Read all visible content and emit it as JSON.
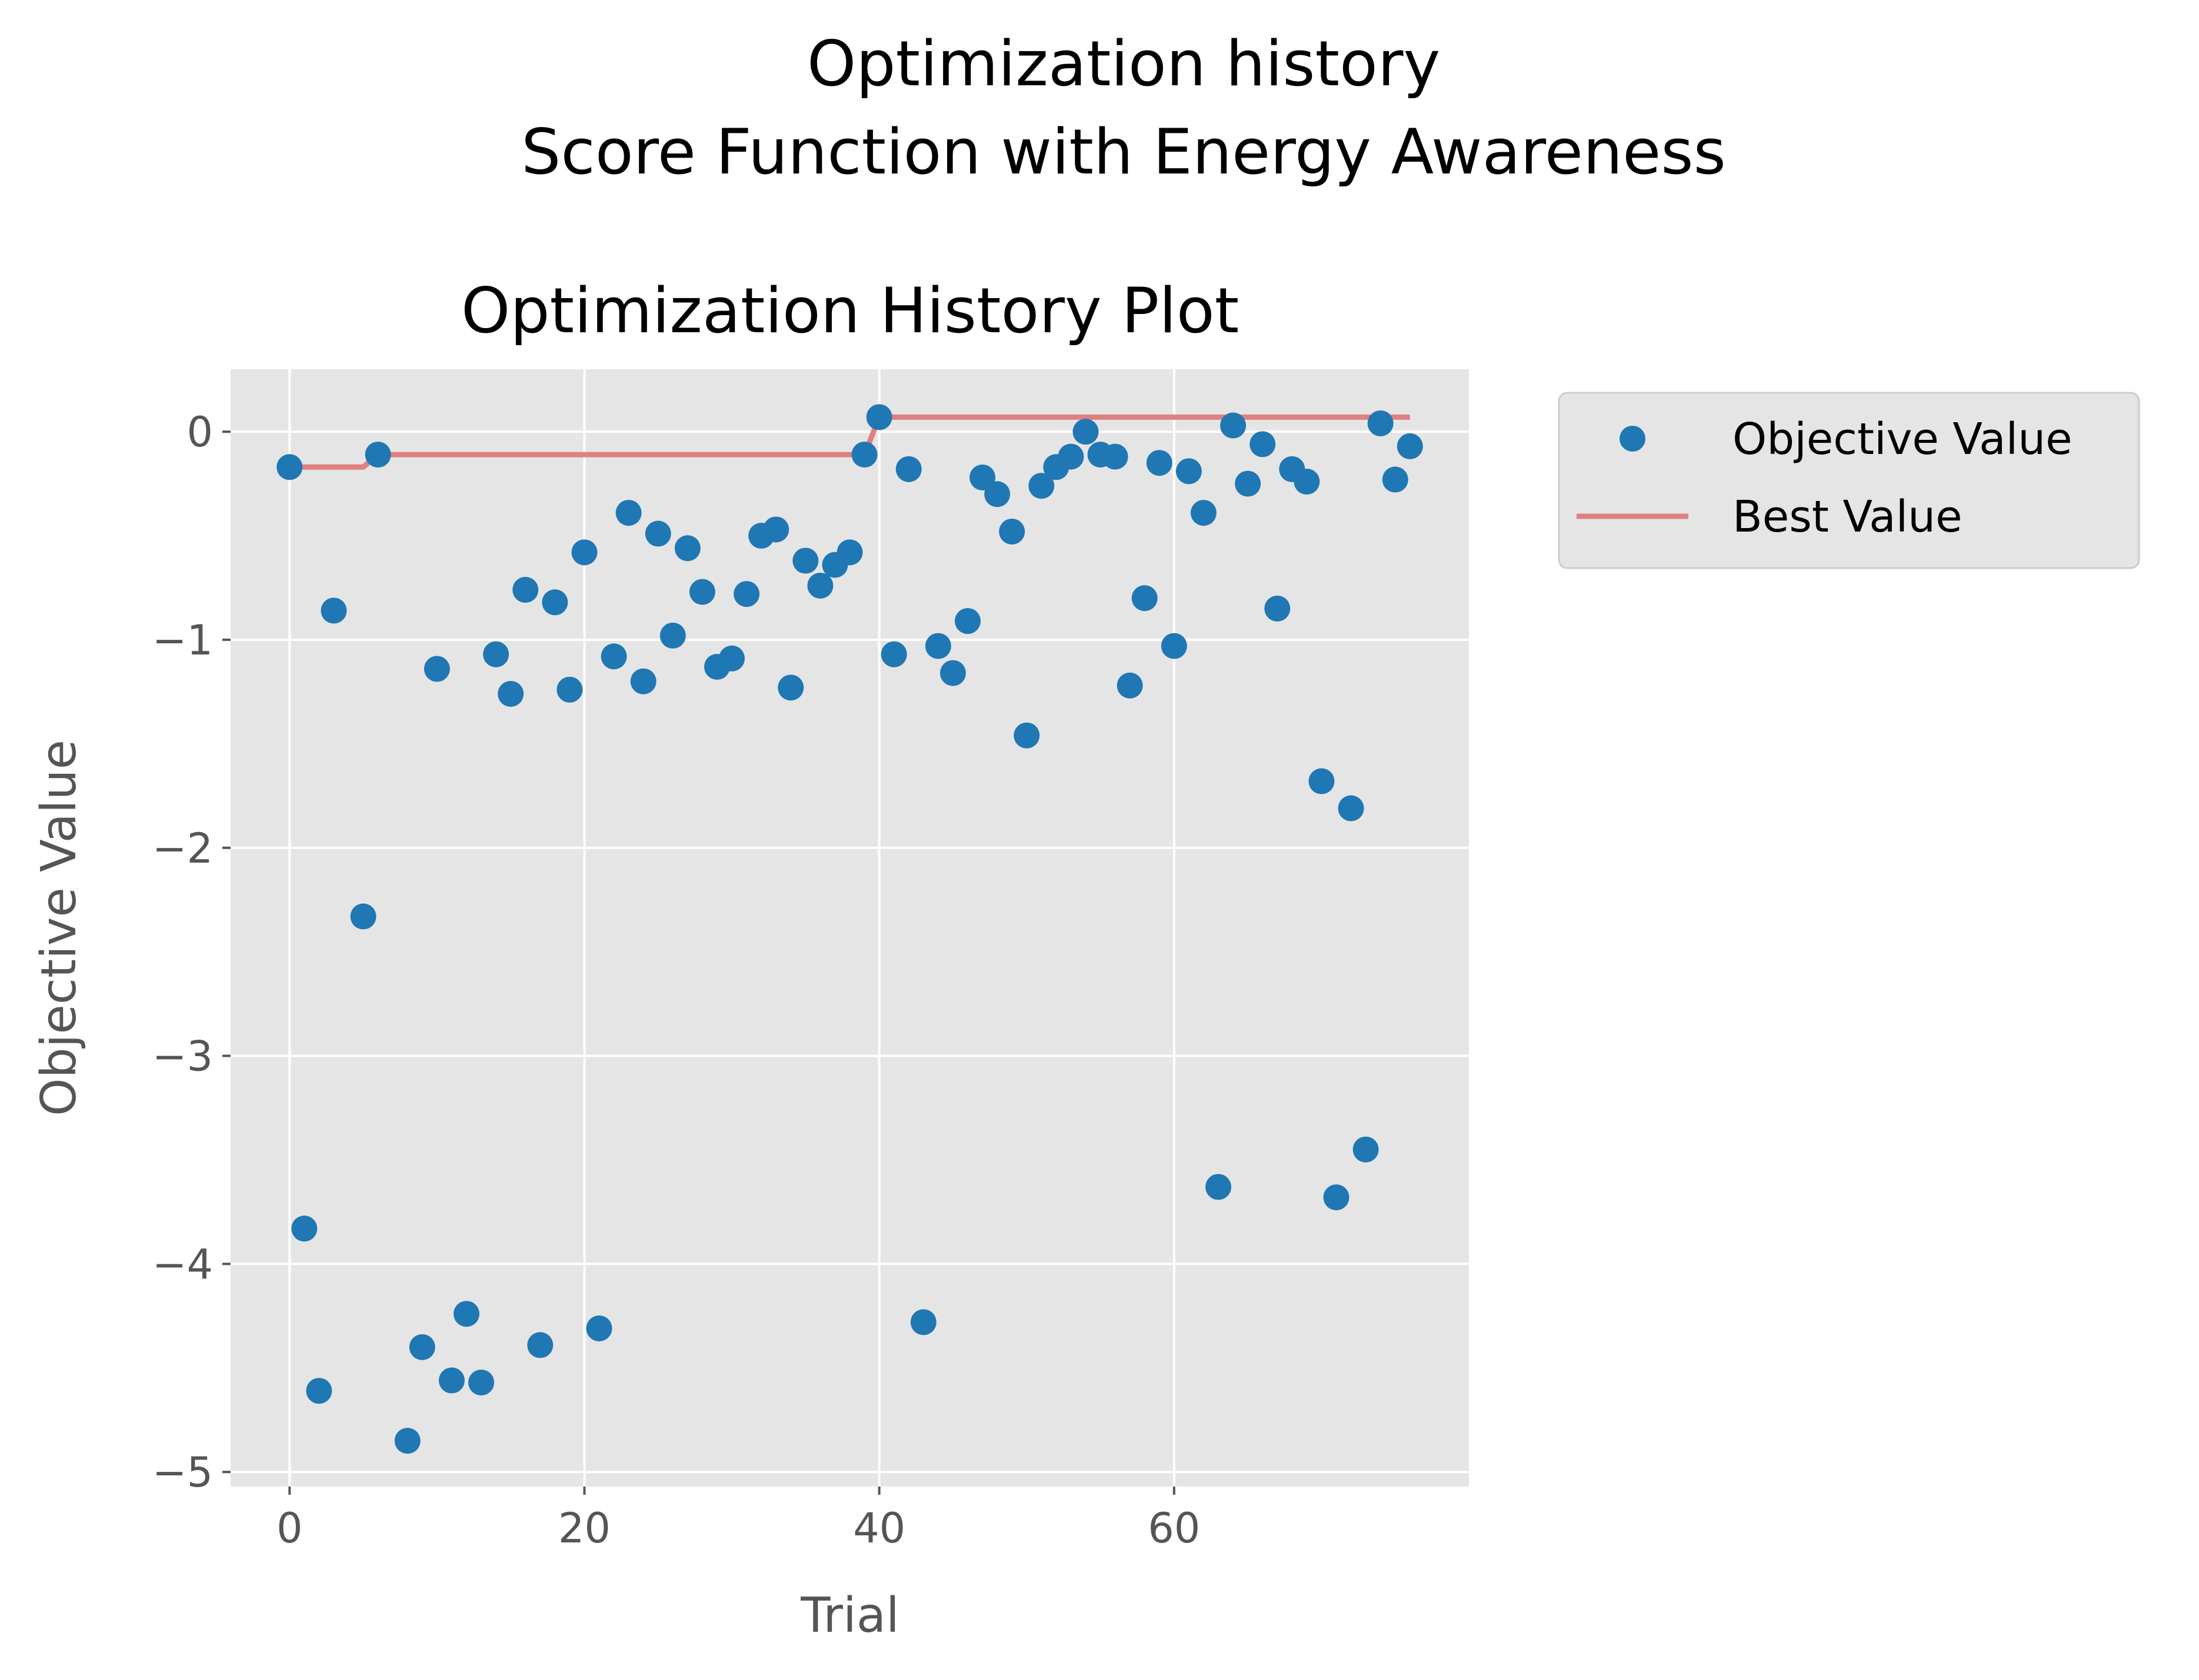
{
  "figure": {
    "suptitle_line1": "Optimization history",
    "suptitle_line2": "Score Function with Energy Awareness"
  },
  "colors": {
    "axes_background": "#e5e5e5",
    "grid": "#ffffff",
    "points": "#1f77b4",
    "best_line": "#e08080",
    "tick_text": "#555555"
  },
  "chart_data": {
    "type": "scatter",
    "title": "Optimization History Plot",
    "xlabel": "Trial",
    "ylabel": "Objective Value",
    "xlim": [
      -4,
      80
    ],
    "ylim": [
      -5.07,
      0.3
    ],
    "x_ticks": [
      0,
      20,
      40,
      60
    ],
    "x_tick_labels": [
      "0",
      "20",
      "40",
      "60"
    ],
    "y_ticks": [
      0,
      -1,
      -2,
      -3,
      -4,
      -5
    ],
    "y_tick_labels": [
      "0",
      "−1",
      "−2",
      "−3",
      "−4",
      "−5"
    ],
    "grid": true,
    "legend_position": "outside-right-top",
    "series": [
      {
        "name": "Objective Value",
        "kind": "scatter",
        "color": "#1f77b4",
        "x": [
          0,
          1,
          2,
          3,
          5,
          6,
          8,
          9,
          10,
          11,
          12,
          13,
          14,
          15,
          16,
          17,
          18,
          19,
          20,
          21,
          22,
          23,
          24,
          25,
          26,
          27,
          28,
          29,
          30,
          31,
          32,
          33,
          34,
          35,
          36,
          37,
          38,
          39,
          40,
          41,
          42,
          43,
          44,
          45,
          46,
          47,
          48,
          49,
          50,
          51,
          52,
          53,
          54,
          55,
          56,
          57,
          58,
          59,
          60,
          61,
          62,
          63,
          64,
          65,
          66,
          67,
          68,
          69,
          70,
          71,
          72,
          73,
          74,
          75,
          76
        ],
        "y": [
          -0.17,
          -3.83,
          -4.61,
          -0.86,
          -2.33,
          -0.11,
          -4.85,
          -4.4,
          -1.14,
          -4.56,
          -4.24,
          -4.57,
          -1.07,
          -1.26,
          -0.76,
          -4.39,
          -0.82,
          -1.24,
          -0.58,
          -4.31,
          -1.08,
          -0.39,
          -1.2,
          -0.49,
          -0.98,
          -0.56,
          -0.77,
          -1.13,
          -1.09,
          -0.78,
          -0.5,
          -0.47,
          -1.23,
          -0.62,
          -0.74,
          -0.64,
          -0.58,
          -0.11,
          0.07,
          -1.07,
          -0.18,
          -4.28,
          -1.03,
          -1.16,
          -0.91,
          -0.22,
          -0.3,
          -0.48,
          -1.46,
          -0.26,
          -0.17,
          -0.12,
          0.0,
          -0.11,
          -0.12,
          -1.22,
          -0.8,
          -0.15,
          -1.03,
          -0.19,
          -0.39,
          -3.63,
          0.03,
          -0.25,
          -0.06,
          -0.85,
          -0.18,
          -0.24,
          -1.68,
          -3.68,
          -1.81,
          -3.45,
          0.04,
          -0.23,
          -0.07
        ]
      },
      {
        "name": "Best Value",
        "kind": "step-line",
        "color": "#e08080",
        "x": [
          0,
          5,
          6,
          39,
          40,
          76
        ],
        "y": [
          -0.17,
          -0.17,
          -0.11,
          -0.11,
          0.07,
          0.07
        ]
      }
    ]
  }
}
